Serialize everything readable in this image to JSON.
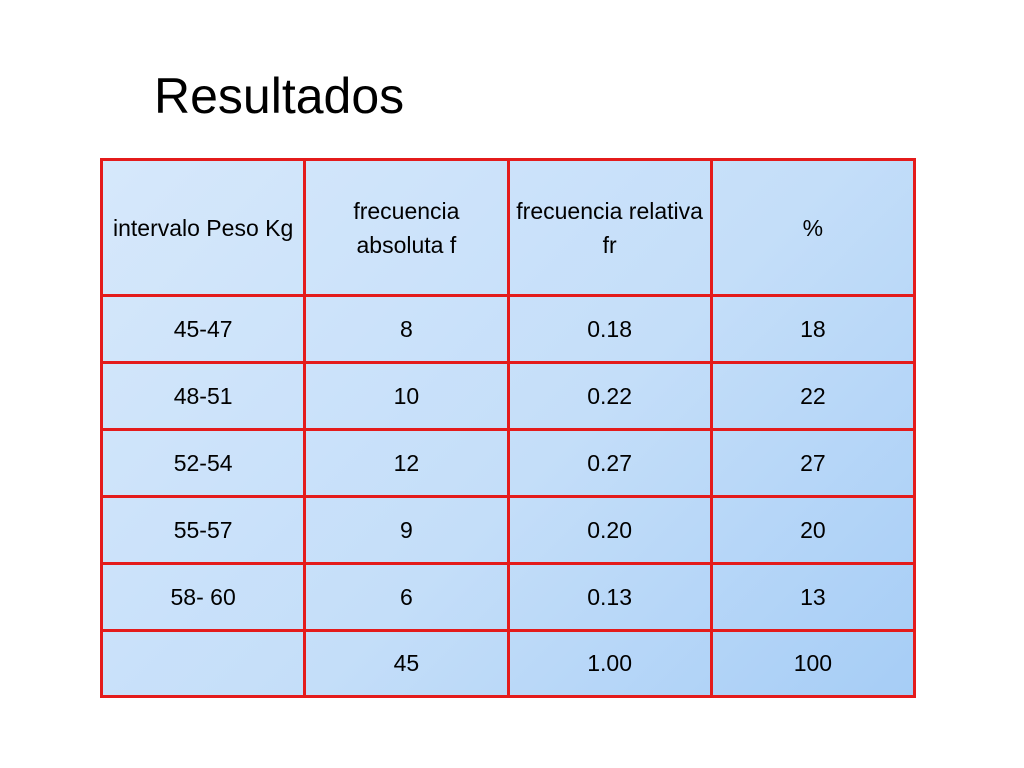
{
  "title": "Resultados",
  "table": {
    "headers": [
      "intervalo Peso Kg",
      "frecuencia absoluta f",
      "frecuencia relativa fr",
      "%"
    ],
    "rows": [
      [
        "45-47",
        "8",
        "0.18",
        "18"
      ],
      [
        "48-51",
        "10",
        "0.22",
        "22"
      ],
      [
        "52-54",
        "12",
        "0.27",
        "27"
      ],
      [
        "55-57",
        "9",
        "0.20",
        "20"
      ],
      [
        "58- 60",
        "6",
        "0.13",
        "13"
      ]
    ],
    "totals": [
      "",
      "45",
      "1.00",
      "100"
    ]
  },
  "colors": {
    "grid_border": "#e41b1b",
    "cell_fill_light": "#d6e8fb",
    "cell_fill_dark": "#a6cdf6"
  }
}
